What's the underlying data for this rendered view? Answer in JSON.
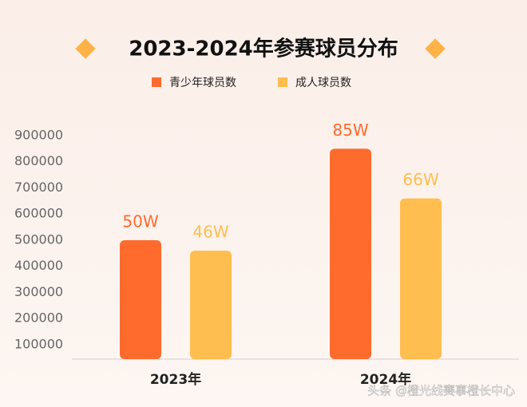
{
  "chart_data": {
    "type": "bar",
    "title": "2023-2024年参赛球员分布",
    "categories": [
      "2023年",
      "2024年"
    ],
    "series": [
      {
        "name": "青少年球员数",
        "color": "#ff6b2c",
        "values": [
          500000,
          850000
        ],
        "value_labels": [
          "50W",
          "85W"
        ]
      },
      {
        "name": "成人球员数",
        "color": "#ffbe4f",
        "values": [
          460000,
          660000
        ],
        "value_labels": [
          "46W",
          "66W"
        ]
      }
    ],
    "ylim": [
      45000,
      950000
    ],
    "yticks": [
      100000,
      200000,
      300000,
      400000,
      500000,
      600000,
      700000,
      800000,
      900000
    ],
    "grid": false,
    "legend": "top",
    "watermark": "头条 @橙光线赛事橙长中心"
  }
}
